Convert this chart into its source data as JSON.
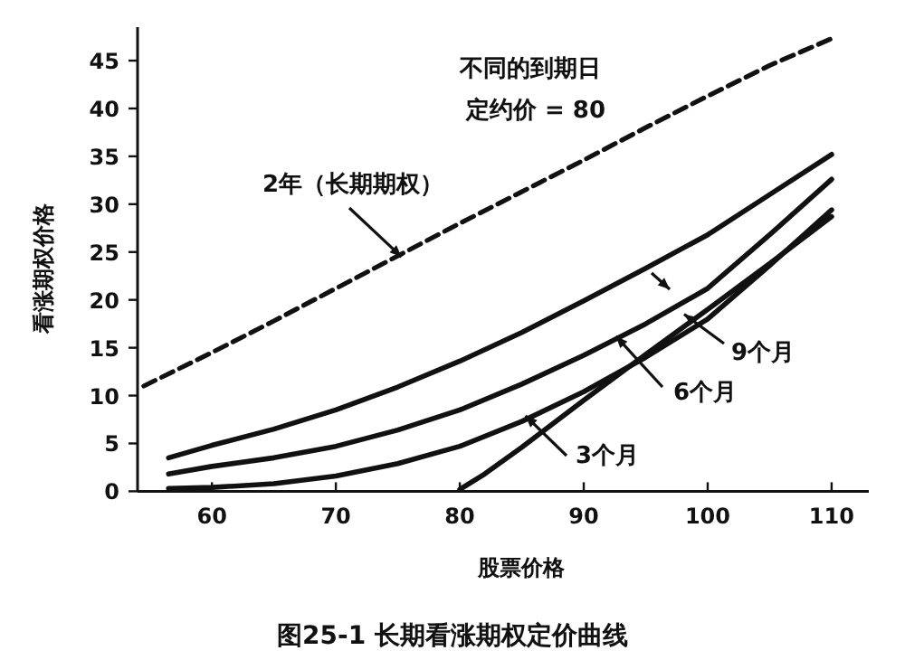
{
  "chart_data": {
    "type": "line",
    "title": "图25-1   长期看涨期权定价曲线",
    "xlabel": "股票价格",
    "ylabel": "看涨期权价格",
    "annotations": [
      "不同的到期日",
      "定约价 = 80",
      {
        "text": "2年（长期期权）",
        "x": 75.3,
        "y": 24.5
      },
      {
        "text": "9个月",
        "x": 98.1,
        "y": 18.5
      },
      {
        "text": "6个月",
        "x": 92.6,
        "y": 16.2
      },
      {
        "text": "3个月",
        "x": 85.3,
        "y": 7.9
      }
    ],
    "xlim": [
      54,
      113
    ],
    "ylim": [
      0,
      48.5
    ],
    "xticks": [
      60,
      70,
      80,
      90,
      100,
      110
    ],
    "yticks": [
      0,
      5,
      10,
      15,
      20,
      25,
      30,
      35,
      40,
      45
    ],
    "grid": false,
    "marker": "none",
    "series": [
      {
        "color": "#111111",
        "line_style": "dashed",
        "x": [
          54.5,
          60,
          65,
          70,
          75,
          80,
          85,
          90,
          95,
          100,
          105,
          110
        ],
        "values": [
          11,
          14.5,
          17.8,
          21.2,
          24.6,
          28,
          31.3,
          34.6,
          38,
          41.3,
          44.5,
          47.3
        ]
      },
      {
        "color": "#111111",
        "line_style": "solid",
        "x": [
          56.5,
          60,
          65,
          70,
          75,
          80,
          85,
          90,
          95,
          100,
          105,
          110
        ],
        "values": [
          3.5,
          4.8,
          6.5,
          8.5,
          10.9,
          13.6,
          16.6,
          19.9,
          23.3,
          26.8,
          31,
          35.2
        ]
      },
      {
        "color": "#111111",
        "line_style": "solid",
        "x": [
          56.5,
          60,
          65,
          70,
          75,
          80,
          85,
          90,
          95,
          100,
          105,
          110
        ],
        "values": [
          1.8,
          2.6,
          3.5,
          4.7,
          6.4,
          8.5,
          11.2,
          14.2,
          17.5,
          21.2,
          26.8,
          32.6
        ]
      },
      {
        "color": "#111111",
        "line_style": "solid",
        "x": [
          56.5,
          60,
          65,
          70,
          75,
          80,
          85,
          90,
          95,
          100,
          105,
          110
        ],
        "values": [
          0.3,
          0.4,
          0.8,
          1.6,
          2.9,
          4.7,
          7.3,
          10.4,
          14,
          18,
          23.6,
          29.4
        ]
      },
      {
        "color": "#111111",
        "line_style": "solid",
        "x": [
          80,
          82,
          85,
          90,
          95,
          100,
          105,
          110
        ],
        "values": [
          0.2,
          1.8,
          4.6,
          9.5,
          14.3,
          19,
          23.8,
          28.7
        ]
      }
    ]
  }
}
